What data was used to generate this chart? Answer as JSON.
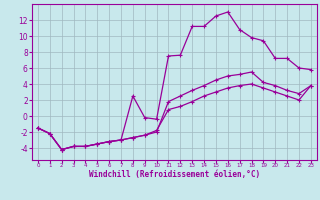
{
  "xlabel": "Windchill (Refroidissement éolien,°C)",
  "xlim": [
    -0.5,
    23.5
  ],
  "ylim": [
    -5.5,
    14.0
  ],
  "yticks": [
    -4,
    -2,
    0,
    2,
    4,
    6,
    8,
    10,
    12
  ],
  "xticks": [
    0,
    1,
    2,
    3,
    4,
    5,
    6,
    7,
    8,
    9,
    10,
    11,
    12,
    13,
    14,
    15,
    16,
    17,
    18,
    19,
    20,
    21,
    22,
    23
  ],
  "xlabels": [
    "0",
    "1",
    "2",
    "3",
    "4",
    "5",
    "6",
    "7",
    "8",
    "9",
    "10",
    "11",
    "12",
    "13",
    "14",
    "15",
    "16",
    "17",
    "18",
    "19",
    "20",
    "21",
    "22",
    "23"
  ],
  "bg_color": "#c8e8ec",
  "line_color": "#990099",
  "grid_color": "#a0b8c0",
  "lines": [
    {
      "x": [
        0,
        1,
        2,
        3,
        4,
        5,
        6,
        7,
        8,
        9,
        10,
        11,
        12,
        13,
        14,
        15,
        16,
        17,
        18,
        19,
        20,
        21,
        22,
        23
      ],
      "y": [
        -1.5,
        -2.2,
        -4.2,
        -3.8,
        -3.8,
        -3.5,
        -3.2,
        -3.0,
        2.5,
        -0.2,
        -0.4,
        7.5,
        7.6,
        11.2,
        11.2,
        12.5,
        13.0,
        10.8,
        9.8,
        9.4,
        7.2,
        7.2,
        6.0,
        5.8
      ]
    },
    {
      "x": [
        0,
        1,
        2,
        3,
        4,
        5,
        6,
        7,
        8,
        9,
        10,
        11,
        12,
        13,
        14,
        15,
        16,
        17,
        18,
        19,
        20,
        21,
        22,
        23
      ],
      "y": [
        -1.5,
        -2.2,
        -4.2,
        -3.8,
        -3.8,
        -3.5,
        -3.2,
        -3.0,
        -2.7,
        -2.4,
        -2.0,
        1.8,
        2.5,
        3.2,
        3.8,
        4.5,
        5.0,
        5.2,
        5.5,
        4.2,
        3.8,
        3.2,
        2.8,
        3.8
      ]
    },
    {
      "x": [
        0,
        1,
        2,
        3,
        4,
        5,
        6,
        7,
        8,
        9,
        10,
        11,
        12,
        13,
        14,
        15,
        16,
        17,
        18,
        19,
        20,
        21,
        22,
        23
      ],
      "y": [
        -1.5,
        -2.2,
        -4.2,
        -3.8,
        -3.8,
        -3.5,
        -3.2,
        -3.0,
        -2.7,
        -2.4,
        -1.8,
        0.8,
        1.2,
        1.8,
        2.5,
        3.0,
        3.5,
        3.8,
        4.0,
        3.5,
        3.0,
        2.5,
        2.0,
        3.8
      ]
    }
  ]
}
